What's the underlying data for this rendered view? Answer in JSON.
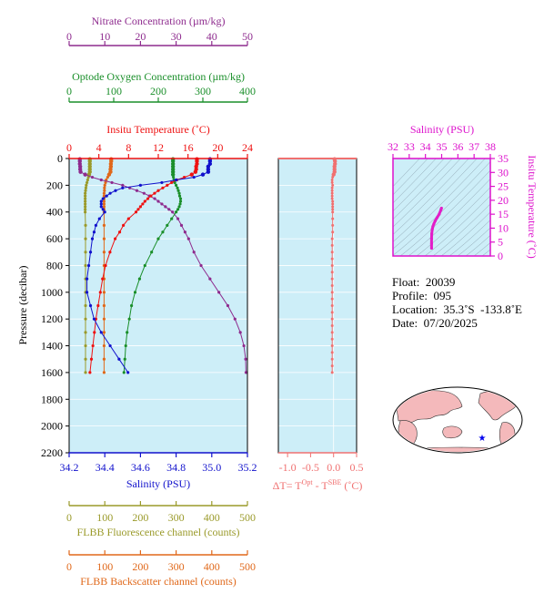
{
  "colors": {
    "nitrate": "#8e2b8e",
    "oxygen": "#1a8f2a",
    "temperature": "#ee1111",
    "salinity": "#1111cc",
    "fluorescence": "#9a9a2a",
    "backscatter": "#e0681a",
    "delta_t": "#f07070",
    "ts_line": "#e21ec8",
    "ts_axis": "#dd11cc",
    "plot_bg": "#cdeef8"
  },
  "labels": {
    "nitrate_title": "Nitrate Concentration (µm/kg)",
    "oxygen_title": "Optode Oxygen Concentration (µm/kg)",
    "temperature_title": "Insitu Temperature (˚C)",
    "salinity_title": "Salinity (PSU)",
    "pressure_title": "Pressure (decibar)",
    "fluorescence_title": "FLBB Fluorescence channel (counts)",
    "backscatter_title": "FLBB Backscatter channel (counts)",
    "dt_title_prefix": "ΔT= T",
    "dt_sup1": "Opt",
    "dt_minus": " - T",
    "dt_sup2": "SBE",
    "dt_suffix": " (˚C)",
    "ts_salinity_title": "Salinity (PSU)",
    "ts_temp_title": "Insitu Temperature (˚C)"
  },
  "info": {
    "float": "Float:  20039",
    "profile": "Profile:  095",
    "location": "Location:  35.3˚S  -133.8˚E",
    "date": "Date:  07/20/2025"
  },
  "chart_data": [
    {
      "type": "line",
      "name": "main-profile",
      "axes": {
        "pressure": {
          "range": [
            0,
            2200
          ],
          "ticks": [
            0,
            200,
            400,
            600,
            800,
            1000,
            1200,
            1400,
            1600,
            1800,
            2000,
            2200
          ]
        },
        "nitrate": {
          "range": [
            0,
            50
          ],
          "ticks": [
            0,
            10,
            20,
            30,
            40,
            50
          ]
        },
        "oxygen": {
          "range": [
            0,
            400
          ],
          "ticks": [
            0,
            100,
            200,
            300,
            400
          ]
        },
        "temperature": {
          "range": [
            0,
            24
          ],
          "ticks": [
            0,
            4,
            8,
            12,
            16,
            20,
            24
          ]
        },
        "salinity": {
          "range": [
            34.2,
            35.2
          ],
          "ticks": [
            "34.2",
            "34.4",
            "34.6",
            "34.8",
            "35.0",
            "35.2"
          ]
        },
        "fluorescence": {
          "range": [
            0,
            500
          ],
          "ticks": [
            0,
            100,
            200,
            300,
            400,
            500
          ]
        },
        "backscatter": {
          "range": [
            0,
            500
          ],
          "ticks": [
            0,
            100,
            200,
            300,
            400,
            500
          ]
        }
      },
      "series": {
        "temperature": {
          "pressure": [
            5,
            20,
            40,
            60,
            80,
            100,
            120,
            140,
            160,
            180,
            200,
            220,
            240,
            260,
            280,
            300,
            320,
            340,
            360,
            380,
            400,
            450,
            500,
            550,
            600,
            700,
            800,
            900,
            1000,
            1100,
            1200,
            1300,
            1400,
            1500,
            1600
          ],
          "values": [
            17.2,
            17.2,
            17.2,
            17.1,
            17.1,
            17.0,
            16.5,
            15.5,
            14.5,
            13.8,
            13.2,
            12.6,
            12.0,
            11.5,
            11.0,
            10.6,
            10.2,
            9.9,
            9.6,
            9.3,
            9.0,
            8.0,
            7.3,
            6.8,
            6.2,
            5.5,
            4.9,
            4.5,
            4.2,
            3.9,
            3.6,
            3.4,
            3.2,
            3.0,
            2.8
          ]
        },
        "salinity": {
          "pressure": [
            5,
            20,
            40,
            60,
            80,
            100,
            120,
            140,
            160,
            180,
            200,
            220,
            240,
            260,
            280,
            300,
            320,
            340,
            360,
            380,
            400,
            450,
            500,
            550,
            600,
            700,
            800,
            900,
            1000,
            1100,
            1200,
            1300,
            1400,
            1500,
            1600
          ],
          "values": [
            34.99,
            34.99,
            34.99,
            34.98,
            34.98,
            34.98,
            34.95,
            34.9,
            34.8,
            34.72,
            34.6,
            34.5,
            34.46,
            34.43,
            34.41,
            34.39,
            34.38,
            34.38,
            34.38,
            34.39,
            34.4,
            34.37,
            34.35,
            34.34,
            34.33,
            34.32,
            34.31,
            34.3,
            34.3,
            34.32,
            34.34,
            34.38,
            34.43,
            34.48,
            34.53
          ]
        },
        "oxygen": {
          "pressure": [
            5,
            20,
            40,
            60,
            80,
            100,
            120,
            140,
            160,
            180,
            200,
            220,
            240,
            260,
            280,
            300,
            320,
            340,
            360,
            380,
            400,
            450,
            500,
            550,
            600,
            700,
            800,
            900,
            1000,
            1100,
            1200,
            1300,
            1400,
            1500,
            1600
          ],
          "values": [
            233,
            233,
            233,
            233,
            233,
            233,
            233,
            234,
            235,
            237,
            240,
            243,
            245,
            247,
            248,
            250,
            250,
            249,
            247,
            244,
            240,
            230,
            220,
            210,
            200,
            185,
            170,
            158,
            148,
            140,
            135,
            130,
            127,
            125,
            123
          ]
        },
        "nitrate": {
          "pressure": [
            5,
            20,
            40,
            60,
            80,
            100,
            120,
            140,
            160,
            180,
            200,
            220,
            240,
            260,
            280,
            300,
            320,
            340,
            360,
            380,
            400,
            450,
            500,
            550,
            600,
            700,
            800,
            900,
            1000,
            1100,
            1200,
            1300,
            1400,
            1500,
            1600
          ],
          "values": [
            3.0,
            3.0,
            3.0,
            3.1,
            3.1,
            3.2,
            4.5,
            6.5,
            9.0,
            12.0,
            15.0,
            17.0,
            19.0,
            21.0,
            22.5,
            24.0,
            25.0,
            26.0,
            27.0,
            28.0,
            29.0,
            30.5,
            31.5,
            32.5,
            33.5,
            35.0,
            37.0,
            39.5,
            42.0,
            44.5,
            46.5,
            48.0,
            49.0,
            49.5,
            49.6
          ]
        },
        "fluorescence": {
          "pressure": [
            5,
            20,
            40,
            60,
            80,
            100,
            120,
            140,
            160,
            180,
            200,
            220,
            240,
            260,
            280,
            300,
            320,
            340,
            360,
            380,
            400,
            500,
            600,
            700,
            800,
            900,
            1000,
            1100,
            1200,
            1300,
            1400,
            1500,
            1600
          ],
          "values": [
            58,
            58,
            58,
            58,
            58,
            58,
            56,
            54,
            52,
            50,
            48,
            47,
            46,
            45,
            45,
            45,
            45,
            45,
            45,
            45,
            45,
            46,
            46,
            46,
            46,
            46,
            46,
            46,
            46,
            46,
            46,
            46,
            46
          ]
        },
        "backscatter": {
          "pressure": [
            5,
            20,
            40,
            60,
            80,
            100,
            120,
            140,
            160,
            180,
            200,
            220,
            240,
            260,
            280,
            300,
            320,
            340,
            360,
            380,
            400,
            500,
            600,
            700,
            800,
            900,
            1000,
            1100,
            1200,
            1300,
            1400,
            1500,
            1600
          ],
          "values": [
            118,
            118,
            117,
            117,
            116,
            116,
            112,
            108,
            104,
            102,
            100,
            99,
            99,
            98,
            98,
            98,
            98,
            98,
            98,
            98,
            98,
            98,
            98,
            98,
            98,
            98,
            98,
            98,
            98,
            98,
            98,
            98,
            98
          ]
        }
      }
    },
    {
      "type": "scatter",
      "name": "delta-t",
      "xlim": [
        -1.2,
        0.5
      ],
      "xticks": [
        "-1.0",
        "-0.5",
        "0.0",
        "0.5"
      ],
      "pressure": [
        5,
        20,
        40,
        60,
        80,
        100,
        120,
        140,
        160,
        180,
        200,
        220,
        240,
        260,
        280,
        300,
        320,
        340,
        360,
        380,
        400,
        450,
        500,
        550,
        600,
        650,
        700,
        750,
        800,
        850,
        900,
        950,
        1000,
        1050,
        1100,
        1150,
        1200,
        1250,
        1300,
        1350,
        1400,
        1450,
        1500,
        1550,
        1600
      ],
      "values": [
        0.02,
        0.03,
        0.03,
        0.02,
        0.02,
        0.02,
        0.0,
        -0.02,
        -0.03,
        -0.03,
        -0.02,
        -0.03,
        -0.03,
        -0.03,
        -0.03,
        -0.03,
        -0.02,
        -0.02,
        -0.02,
        -0.02,
        -0.02,
        -0.02,
        -0.02,
        -0.02,
        -0.03,
        -0.03,
        -0.03,
        -0.03,
        -0.03,
        -0.03,
        -0.03,
        -0.03,
        -0.03,
        -0.03,
        -0.03,
        -0.03,
        -0.03,
        -0.03,
        -0.03,
        -0.03,
        -0.03,
        -0.03,
        -0.03,
        -0.03,
        -0.03
      ]
    },
    {
      "type": "line",
      "name": "ts-diagram",
      "xlim": [
        32,
        38
      ],
      "xticks": [
        32,
        33,
        34,
        35,
        36,
        37,
        38
      ],
      "ylim": [
        0,
        35
      ],
      "yticks": [
        0,
        5,
        10,
        15,
        20,
        25,
        30,
        35
      ],
      "salinity": [
        34.99,
        34.95,
        34.85,
        34.72,
        34.6,
        34.52,
        34.46,
        34.42,
        34.39,
        34.38,
        34.38,
        34.38
      ],
      "temperature": [
        17.2,
        16.5,
        15.0,
        13.8,
        12.6,
        11.5,
        10.6,
        9.6,
        8.0,
        6.2,
        4.5,
        2.8
      ]
    }
  ]
}
